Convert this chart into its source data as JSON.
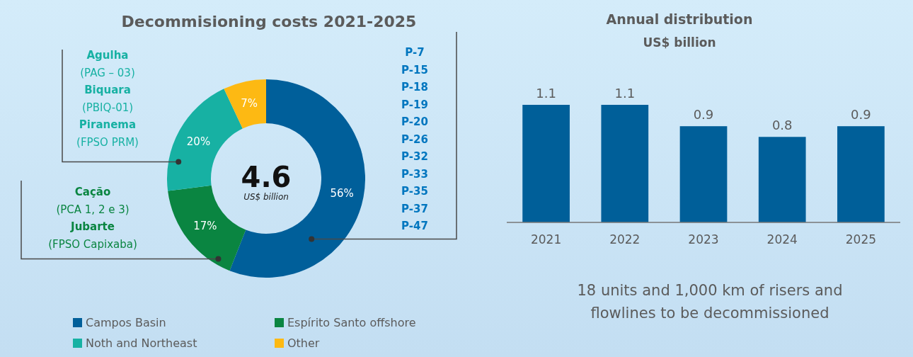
{
  "chart_data": [
    {
      "type": "donut",
      "title": "Decommisioning costs 2021-2025",
      "categories": [
        "Campos Basin",
        "Espírito Santo offshore",
        "Noth and Northeast",
        "Other"
      ],
      "values": [
        56,
        17,
        20,
        7
      ],
      "colors": [
        "#005f9a",
        "#0a8541",
        "#17b1a3",
        "#fdb913"
      ],
      "value_labels": [
        "56%",
        "17%",
        "20%",
        "7%"
      ],
      "legend": "bottom",
      "annotations": [
        "4.6",
        "US$ billion",
        {
          "text": "Agulha\n(PAG – 03)\nBiquara\n(PBIQ-01)\nPiranema\n(FPSO PRM)",
          "x": "Noth and Northeast"
        },
        {
          "text": "Cação\n(PCA 1, 2 e 3)\nJubarte\n(FPSO Capixaba)",
          "x": "Espírito Santo offshore"
        },
        {
          "text": "P-7\nP-15\nP-18\nP-19\nP-20\nP-26\nP-32\nP-33\nP-35\nP-37\nP-47",
          "x": "Campos Basin"
        }
      ]
    },
    {
      "type": "bar",
      "title": "Annual distribution",
      "subtitle": "US$ billion",
      "categories": [
        "2021",
        "2022",
        "2023",
        "2024",
        "2025"
      ],
      "values": [
        1.1,
        1.1,
        0.9,
        0.8,
        0.9
      ],
      "color": "#005f99",
      "data_labels": true,
      "annotations": [
        "18 units and 1,000 km of risers and\nflowlines to be decommissioned"
      ]
    }
  ]
}
